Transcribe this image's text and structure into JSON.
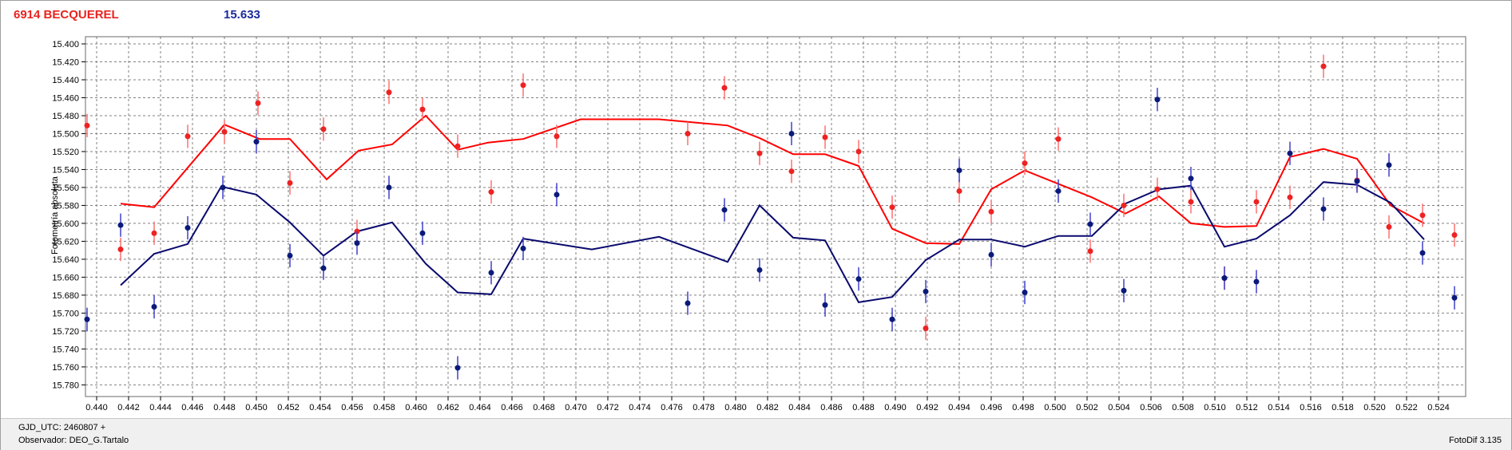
{
  "header": {
    "object": "6914 BECQUEREL",
    "magnitude": "15.633"
  },
  "footer": {
    "gjd_label": "GJD_UTC: 2460807 +",
    "observer_label": "Observador: DEO_G.Tartalo",
    "software_version": "FotoDif 3.135"
  },
  "colors": {
    "red_series": "#ff0000",
    "blue_series": "#0a0a6e",
    "point_red": "#ee2222",
    "point_blue": "#0a1a7a",
    "error_red": "#ff7070",
    "error_blue": "#4040cc",
    "grid": "#808080"
  },
  "chart_data": {
    "type": "scatter",
    "ylabel": "Fotometría absoluta",
    "xlabel": "",
    "xlim": [
      0.4393,
      0.5257
    ],
    "ylim": [
      15.793,
      15.392
    ],
    "y_inverted": true,
    "grid": true,
    "x_ticks": [
      0.44,
      0.442,
      0.444,
      0.446,
      0.448,
      0.45,
      0.452,
      0.454,
      0.456,
      0.458,
      0.46,
      0.462,
      0.464,
      0.466,
      0.468,
      0.47,
      0.472,
      0.474,
      0.476,
      0.478,
      0.48,
      0.482,
      0.484,
      0.486,
      0.488,
      0.49,
      0.492,
      0.494,
      0.496,
      0.498,
      0.5,
      0.502,
      0.504,
      0.506,
      0.508,
      0.51,
      0.512,
      0.514,
      0.516,
      0.518,
      0.52,
      0.522,
      0.524
    ],
    "x_tick_labels": [
      "0.440",
      "0.442",
      "0.444",
      "0.446",
      "0.448",
      "0.450",
      "0.452",
      "0.454",
      "0.456",
      "0.458",
      "0.460",
      "0.462",
      "0.464",
      "0.466",
      "0.468",
      "0.470",
      "0.472",
      "0.474",
      "0.476",
      "0.478",
      "0.480",
      "0.482",
      "0.484",
      "0.486",
      "0.488",
      "0.490",
      "0.492",
      "0.494",
      "0.496",
      "0.498",
      "0.500",
      "0.502",
      "0.504",
      "0.506",
      "0.508",
      "0.510",
      "0.512",
      "0.514",
      "0.516",
      "0.518",
      "0.520",
      "0.522",
      "0.524"
    ],
    "y_ticks": [
      15.4,
      15.42,
      15.44,
      15.46,
      15.48,
      15.5,
      15.52,
      15.54,
      15.56,
      15.58,
      15.6,
      15.62,
      15.64,
      15.66,
      15.68,
      15.7,
      15.72,
      15.74,
      15.76,
      15.78
    ],
    "y_tick_labels": [
      "15.400",
      "15.420",
      "15.440",
      "15.460",
      "15.480",
      "15.500",
      "15.520",
      "15.540",
      "15.560",
      "15.580",
      "15.600",
      "15.620",
      "15.640",
      "15.660",
      "15.680",
      "15.700",
      "15.720",
      "15.740",
      "15.760",
      "15.780"
    ],
    "error_half": 0.013,
    "series": [
      {
        "color": "red",
        "line": {
          "x": [
            0.4415,
            0.4436,
            0.4457,
            0.448,
            0.4502,
            0.4521,
            0.4544,
            0.4564,
            0.4585,
            0.4606,
            0.4626,
            0.4645,
            0.4667,
            0.4703,
            0.4752,
            0.4795,
            0.4815,
            0.4836,
            0.4856,
            0.4877,
            0.4898,
            0.4919,
            0.494,
            0.496,
            0.4981,
            0.5002,
            0.5023,
            0.5044,
            0.5065,
            0.5085,
            0.5106,
            0.5126,
            0.5147,
            0.5168,
            0.5189,
            0.521,
            0.5231
          ],
          "y": [
            15.578,
            15.582,
            15.538,
            15.49,
            15.506,
            15.506,
            15.551,
            15.519,
            15.512,
            15.48,
            15.518,
            15.51,
            15.506,
            15.484,
            15.484,
            15.491,
            15.505,
            15.523,
            15.523,
            15.536,
            15.606,
            15.622,
            15.623,
            15.562,
            15.541,
            15.556,
            15.571,
            15.589,
            15.57,
            15.6,
            15.604,
            15.603,
            15.526,
            15.517,
            15.528,
            15.58,
            15.6
          ]
        },
        "points": {
          "x": [
            0.4394,
            0.4415,
            0.4436,
            0.4457,
            0.448,
            0.4501,
            0.4521,
            0.4542,
            0.4563,
            0.4583,
            0.4604,
            0.4626,
            0.4647,
            0.4667,
            0.4688,
            0.477,
            0.4793,
            0.4815,
            0.4835,
            0.4856,
            0.4877,
            0.4898,
            0.4919,
            0.494,
            0.496,
            0.4981,
            0.5002,
            0.5022,
            0.5043,
            0.5064,
            0.5085,
            0.5106,
            0.5126,
            0.5147,
            0.5168,
            0.5189,
            0.5209,
            0.523,
            0.525
          ],
          "y": [
            15.491,
            15.629,
            15.611,
            15.503,
            15.498,
            15.466,
            15.555,
            15.495,
            15.609,
            15.454,
            15.473,
            15.514,
            15.565,
            15.446,
            15.503,
            15.5,
            15.449,
            15.522,
            15.542,
            15.504,
            15.52,
            15.582,
            15.717,
            15.564,
            15.587,
            15.533,
            15.506,
            15.631,
            15.58,
            15.562,
            15.576,
            15.661,
            15.576,
            15.571,
            15.425,
            15.552,
            15.604,
            15.591,
            15.613
          ]
        }
      },
      {
        "color": "blue",
        "line": {
          "x": [
            0.4415,
            0.4436,
            0.4457,
            0.4478,
            0.45,
            0.4521,
            0.4542,
            0.4563,
            0.4585,
            0.4606,
            0.4626,
            0.4647,
            0.4667,
            0.471,
            0.4752,
            0.4795,
            0.4815,
            0.4836,
            0.4856,
            0.4877,
            0.4898,
            0.4919,
            0.494,
            0.496,
            0.4981,
            0.5002,
            0.5023,
            0.5044,
            0.5065,
            0.5085,
            0.5106,
            0.5126,
            0.5147,
            0.5168,
            0.5189,
            0.521,
            0.5231
          ],
          "y": [
            15.669,
            15.634,
            15.623,
            15.559,
            15.568,
            15.599,
            15.636,
            15.609,
            15.599,
            15.645,
            15.677,
            15.679,
            15.617,
            15.629,
            15.615,
            15.643,
            15.58,
            15.616,
            15.619,
            15.688,
            15.682,
            15.641,
            15.618,
            15.618,
            15.626,
            15.614,
            15.614,
            15.578,
            15.562,
            15.558,
            15.626,
            15.617,
            15.591,
            15.554,
            15.557,
            15.577,
            15.618
          ]
        },
        "points": {
          "x": [
            0.4394,
            0.4415,
            0.4436,
            0.4457,
            0.4479,
            0.45,
            0.4521,
            0.4542,
            0.4563,
            0.4583,
            0.4604,
            0.4626,
            0.4647,
            0.4667,
            0.4688,
            0.477,
            0.4793,
            0.4815,
            0.4835,
            0.4856,
            0.4877,
            0.4898,
            0.4919,
            0.494,
            0.496,
            0.4981,
            0.5002,
            0.5022,
            0.5043,
            0.5064,
            0.5085,
            0.5106,
            0.5126,
            0.5147,
            0.5168,
            0.5189,
            0.5209,
            0.523,
            0.525
          ],
          "y": [
            15.707,
            15.602,
            15.693,
            15.605,
            15.56,
            15.509,
            15.636,
            15.65,
            15.622,
            15.56,
            15.611,
            15.761,
            15.655,
            15.628,
            15.568,
            15.689,
            15.585,
            15.652,
            15.5,
            15.691,
            15.662,
            15.707,
            15.676,
            15.541,
            15.635,
            15.677,
            15.564,
            15.601,
            15.675,
            15.462,
            15.55,
            15.661,
            15.665,
            15.522,
            15.584,
            15.553,
            15.535,
            15.633,
            15.683
          ]
        }
      }
    ]
  }
}
